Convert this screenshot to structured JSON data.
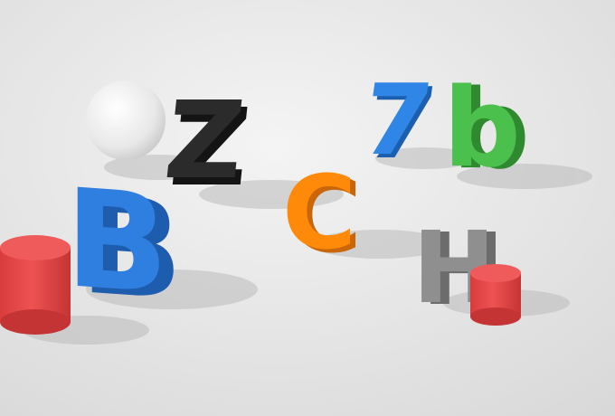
{
  "scene": {
    "objects": [
      {
        "name": "white-sphere",
        "shape": "sphere",
        "color": "#f2f2f2"
      },
      {
        "name": "letter-z",
        "glyph": "Z",
        "color": "#2b2b2b",
        "side": "#141414"
      },
      {
        "name": "digit-7",
        "glyph": "7",
        "color": "#2f86e6",
        "side": "#1c5fae"
      },
      {
        "name": "letter-b-lower",
        "glyph": "b",
        "color": "#4cc04c",
        "side": "#2f8a2f"
      },
      {
        "name": "letter-b-upper",
        "glyph": "B",
        "color": "#2f7fe0",
        "side": "#1e5cae"
      },
      {
        "name": "letter-c",
        "glyph": "C",
        "color": "#ff8a0a",
        "side": "#c9660a"
      },
      {
        "name": "letter-h",
        "glyph": "H",
        "color": "#8f8f8f",
        "side": "#6c6c6c"
      },
      {
        "name": "red-cylinder-large",
        "shape": "cylinder",
        "color": "#e84a4a"
      },
      {
        "name": "red-cylinder-small",
        "shape": "cylinder",
        "color": "#e84a4a"
      }
    ]
  }
}
